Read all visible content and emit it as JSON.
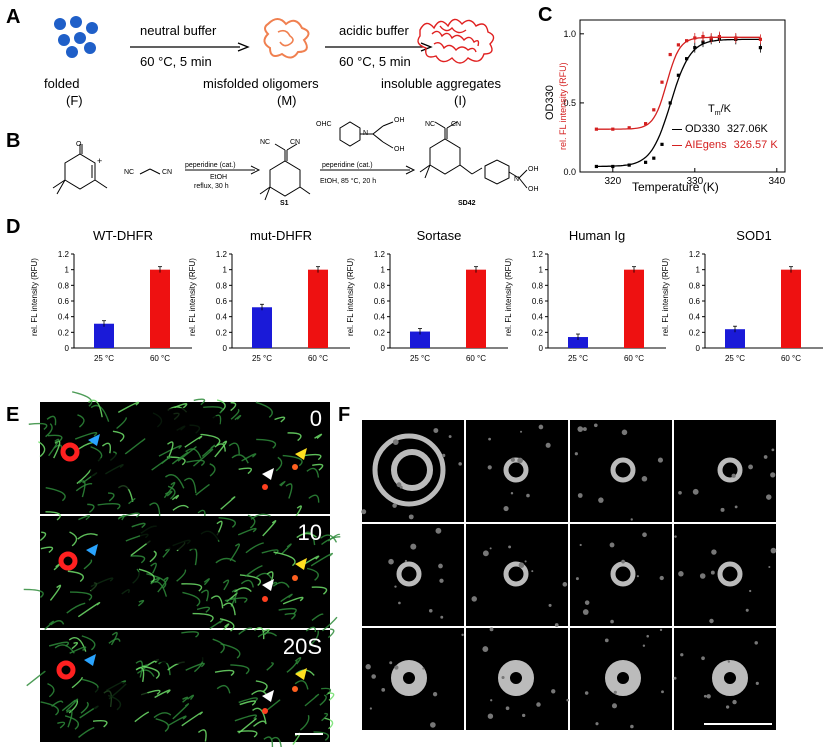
{
  "panels": {
    "A": "A",
    "B": "B",
    "C": "C",
    "D": "D",
    "E": "E",
    "F": "F"
  },
  "panelA": {
    "folded": "folded",
    "folded_abbr": "(F)",
    "step1_top": "neutral buffer",
    "step1_bottom": "60 °C, 5 min",
    "misfolded": "misfolded oligomers",
    "misfolded_abbr": "(M)",
    "step2_top": "acidic buffer",
    "step2_bottom": "60 °C, 5 min",
    "insoluble": "insoluble aggregates",
    "insoluble_abbr": "(I)"
  },
  "panelB": {
    "cond1_top": "peperidine (cat.)",
    "cond1_mid": "EtOH",
    "cond1_bot": "reflux, 30 h",
    "cond2_top": "peperidine (cat.)",
    "cond2_bot": "EtOH, 85 °C, 20 h",
    "s1": "S1",
    "sd42": "SD42",
    "nc": "NC",
    "cn": "CN",
    "ohc": "OHC",
    "oh": "OH",
    "n": "N",
    "plus": "+",
    "o": "O"
  },
  "panelC": {
    "ylabel1": "OD330",
    "ylabel2": "rel. FL intensity (RFU)",
    "xlabel": "Temperature (K)",
    "tm_label": "T",
    "tm_sub": "m",
    "tm_unit": "/K",
    "legend": [
      {
        "name": "OD330",
        "value": "327.06K",
        "color": "#000000"
      },
      {
        "name": "AIEgens",
        "value": "326.57 K",
        "color": "#d42020"
      }
    ],
    "yticks": [
      "0.0",
      "0.5",
      "1.0"
    ],
    "xticks": [
      "320",
      "330",
      "340"
    ]
  },
  "chart_data": [
    {
      "type": "line",
      "x": [
        318,
        320,
        322,
        324,
        325,
        326,
        327,
        328,
        329,
        330,
        331,
        332,
        333,
        335,
        338
      ],
      "series": [
        {
          "name": "OD330",
          "color": "#000000",
          "values": [
            0.04,
            0.04,
            0.05,
            0.07,
            0.1,
            0.2,
            0.5,
            0.7,
            0.82,
            0.9,
            0.94,
            0.96,
            0.97,
            0.96,
            0.9
          ]
        },
        {
          "name": "AIEgens",
          "color": "#d42020",
          "values": [
            0.31,
            0.31,
            0.32,
            0.35,
            0.45,
            0.65,
            0.85,
            0.92,
            0.95,
            0.97,
            0.98,
            0.97,
            0.98,
            0.97,
            0.96
          ]
        }
      ],
      "xlabel": "Temperature (K)",
      "ylabel": "OD330 / rel. FL intensity (RFU)",
      "xlim": [
        316,
        341
      ],
      "ylim": [
        0,
        1.1
      ]
    },
    {
      "type": "bar",
      "title": "WT-DHFR",
      "categories": [
        "25 °C",
        "60 °C"
      ],
      "values": [
        0.31,
        1.0
      ],
      "colors": [
        "#1a1ad8",
        "#ee1111"
      ],
      "ylabel": "rel. FL intensity (RFU)",
      "ylim": [
        0,
        1.2
      ]
    },
    {
      "type": "bar",
      "title": "mut-DHFR",
      "categories": [
        "25 °C",
        "60 °C"
      ],
      "values": [
        0.52,
        1.0
      ],
      "colors": [
        "#1a1ad8",
        "#ee1111"
      ],
      "ylabel": "rel. FL intensity (RFU)",
      "ylim": [
        0,
        1.2
      ]
    },
    {
      "type": "bar",
      "title": "Sortase",
      "categories": [
        "25 °C",
        "60 °C"
      ],
      "values": [
        0.21,
        1.0
      ],
      "colors": [
        "#1a1ad8",
        "#ee1111"
      ],
      "ylabel": "rel. FL intensity (RFU)",
      "ylim": [
        0,
        1.2
      ]
    },
    {
      "type": "bar",
      "title": "Human Ig",
      "categories": [
        "25 °C",
        "60 °C"
      ],
      "values": [
        0.14,
        1.0
      ],
      "colors": [
        "#1a1ad8",
        "#ee1111"
      ],
      "ylabel": "rel. FL intensity (RFU)",
      "ylim": [
        0,
        1.2
      ]
    },
    {
      "type": "bar",
      "title": "SOD1",
      "categories": [
        "25 °C",
        "60 °C"
      ],
      "values": [
        0.24,
        1.0
      ],
      "colors": [
        "#1a1ad8",
        "#ee1111"
      ],
      "ylabel": "rel. FL intensity (RFU)",
      "ylim": [
        0,
        1.2
      ]
    }
  ],
  "bar_yticks": [
    "0",
    "0.2",
    "0.4",
    "0.6",
    "0.8",
    "1",
    "1.2"
  ],
  "panelE": {
    "times": [
      "0",
      "10",
      "20S"
    ]
  }
}
